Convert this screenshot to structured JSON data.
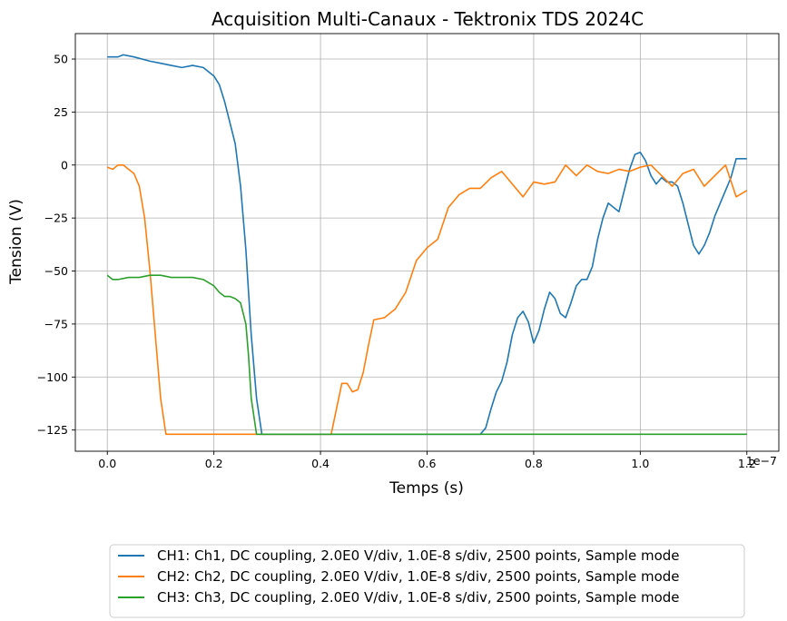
{
  "chart_data": {
    "type": "line",
    "title": "Acquisition Multi-Canaux - Tektronix TDS 2024C",
    "xlabel": "Temps (s)",
    "ylabel": "Tension (V)",
    "x_offset_label": "1e−7",
    "xlim": [
      -0.06,
      1.26
    ],
    "ylim": [
      -135,
      62
    ],
    "x_ticks": [
      0.0,
      0.2,
      0.4,
      0.6,
      0.8,
      1.0,
      1.2
    ],
    "x_tick_labels": [
      "0.0",
      "0.2",
      "0.4",
      "0.6",
      "0.8",
      "1.0",
      "1.2"
    ],
    "y_ticks": [
      50,
      25,
      0,
      -25,
      -50,
      -75,
      -100,
      -125
    ],
    "y_tick_labels": [
      "50",
      "25",
      "0",
      "−25",
      "−50",
      "−75",
      "−100",
      "−125"
    ],
    "grid": true,
    "legend_position": "bottom",
    "series": [
      {
        "name": "CH1: Ch1, DC coupling, 2.0E0 V/div, 1.0E-8 s/div, 2500 points, Sample mode",
        "color": "#1f77b4",
        "x": [
          0.0,
          0.02,
          0.03,
          0.05,
          0.08,
          0.1,
          0.12,
          0.14,
          0.16,
          0.18,
          0.2,
          0.21,
          0.22,
          0.23,
          0.24,
          0.25,
          0.26,
          0.27,
          0.28,
          0.29,
          0.3,
          0.35,
          0.4,
          0.5,
          0.6,
          0.7,
          0.71,
          0.72,
          0.73,
          0.74,
          0.75,
          0.76,
          0.77,
          0.78,
          0.79,
          0.8,
          0.81,
          0.82,
          0.83,
          0.84,
          0.85,
          0.86,
          0.87,
          0.88,
          0.89,
          0.9,
          0.91,
          0.92,
          0.93,
          0.94,
          0.95,
          0.96,
          0.97,
          0.98,
          0.99,
          1.0,
          1.01,
          1.02,
          1.03,
          1.04,
          1.05,
          1.06,
          1.07,
          1.08,
          1.09,
          1.1,
          1.11,
          1.12,
          1.13,
          1.14,
          1.15,
          1.16,
          1.17,
          1.18,
          1.19,
          1.2
        ],
        "y": [
          51,
          51,
          52,
          51,
          49,
          48,
          47,
          46,
          47,
          46,
          42,
          38,
          30,
          20,
          10,
          -10,
          -40,
          -80,
          -110,
          -127,
          -127,
          -127,
          -127,
          -127,
          -127,
          -127,
          -124,
          -115,
          -107,
          -102,
          -93,
          -80,
          -72,
          -69,
          -74,
          -84,
          -78,
          -68,
          -60,
          -63,
          -70,
          -72,
          -65,
          -57,
          -54,
          -54,
          -48,
          -35,
          -25,
          -18,
          -20,
          -22,
          -12,
          -2,
          5,
          6,
          2,
          -5,
          -9,
          -6,
          -8,
          -8,
          -10,
          -18,
          -28,
          -38,
          -42,
          -38,
          -32,
          -24,
          -18,
          -12,
          -6,
          3,
          3,
          3
        ],
        "y_note": "",
        "x_clean": [
          0.0,
          0.02,
          0.03,
          0.05,
          0.08,
          0.1,
          0.12,
          0.14,
          0.16,
          0.18,
          0.2,
          0.21,
          0.22,
          0.23,
          0.24,
          0.25,
          0.26,
          0.27,
          0.28,
          0.29,
          0.3,
          0.35,
          0.4,
          0.5,
          0.6,
          0.7,
          0.71,
          0.72,
          0.73,
          0.74,
          0.75,
          0.76,
          0.77,
          0.78,
          0.79,
          0.8,
          0.81,
          0.82,
          0.83,
          0.84,
          0.85,
          0.86,
          0.87,
          0.88,
          0.89,
          0.9,
          0.91,
          0.92,
          0.93,
          0.94,
          0.95,
          0.96,
          0.97,
          0.98,
          0.99,
          1.0,
          1.01,
          1.02,
          1.03,
          1.04,
          1.05,
          1.06,
          1.07,
          1.08,
          1.09,
          1.1,
          1.11,
          1.12,
          1.13,
          1.14,
          1.15,
          1.16,
          1.17,
          1.18,
          1.19,
          1.2
        ]
      },
      {
        "name": "CH2: Ch2, DC coupling, 2.0E0 V/div, 1.0E-8 s/div, 2500 points, Sample mode",
        "color": "#ff7f0e",
        "x": [
          0.0,
          0.01,
          0.02,
          0.03,
          0.04,
          0.05,
          0.06,
          0.07,
          0.08,
          0.09,
          0.1,
          0.11,
          0.12,
          0.13,
          0.2,
          0.3,
          0.4,
          0.42,
          0.43,
          0.44,
          0.45,
          0.46,
          0.47,
          0.48,
          0.49,
          0.5,
          0.52,
          0.54,
          0.56,
          0.58,
          0.6,
          0.62,
          0.64,
          0.66,
          0.68,
          0.7,
          0.72,
          0.74,
          0.76,
          0.78,
          0.8,
          0.82,
          0.84,
          0.86,
          0.88,
          0.9,
          0.92,
          0.94,
          0.96,
          0.98,
          1.0,
          1.02,
          1.04,
          1.06,
          1.08,
          1.1,
          1.12,
          1.14,
          1.16,
          1.18,
          1.2
        ],
        "y": [
          -1,
          -2,
          0,
          0,
          -2,
          -4,
          -10,
          -25,
          -50,
          -80,
          -110,
          -127,
          -127,
          -127,
          -127,
          -127,
          -127,
          -127,
          -115,
          -103,
          -103,
          -107,
          -106,
          -98,
          -85,
          -73,
          -72,
          -68,
          -60,
          -45,
          -39,
          -35,
          -20,
          -14,
          -11,
          -11,
          -6,
          -3,
          -9,
          -15,
          -8,
          -9,
          -8,
          0,
          -5,
          0,
          -3,
          -4,
          -2,
          -3,
          -1,
          0,
          -5,
          -10,
          -4,
          -2,
          -10,
          -5,
          0,
          -15,
          -12
        ],
        "x_clean": [
          0.0,
          0.01,
          0.02,
          0.03,
          0.04,
          0.05,
          0.06,
          0.07,
          0.08,
          0.09,
          0.1,
          0.11,
          0.12,
          0.13,
          0.2,
          0.3,
          0.4,
          0.42,
          0.43,
          0.44,
          0.45,
          0.46,
          0.47,
          0.48,
          0.49,
          0.5,
          0.52,
          0.54,
          0.56,
          0.58,
          0.6,
          0.62,
          0.64,
          0.66,
          0.68,
          0.7,
          0.72,
          0.74,
          0.76,
          0.78,
          0.8,
          0.82,
          0.84,
          0.86,
          0.88,
          0.9,
          0.92,
          0.94,
          0.96,
          0.98,
          1.0,
          1.02,
          1.04,
          1.06,
          1.08,
          1.1,
          1.12,
          1.14,
          1.16,
          1.18,
          1.2
        ]
      },
      {
        "name": "CH3: Ch3, DC coupling, 2.0E0 V/div, 1.0E-8 s/div, 2500 points, Sample mode",
        "color": "#2ca02c",
        "x": [
          0.0,
          0.01,
          0.02,
          0.04,
          0.06,
          0.08,
          0.1,
          0.12,
          0.14,
          0.16,
          0.18,
          0.2,
          0.21,
          0.22,
          0.23,
          0.24,
          0.25,
          0.26,
          0.265,
          0.27,
          0.28,
          0.3,
          0.4,
          0.6,
          0.8,
          1.0,
          1.2
        ],
        "y": [
          -52,
          -54,
          -54,
          -53,
          -53,
          -52,
          -52,
          -53,
          -53,
          -53,
          -54,
          -57,
          -60,
          -62,
          -62,
          -63,
          -65,
          -75,
          -90,
          -110,
          -127,
          -127,
          -127,
          -127,
          -127,
          -127,
          -127
        ],
        "x_clean": [
          0.0,
          0.01,
          0.02,
          0.04,
          0.06,
          0.08,
          0.1,
          0.12,
          0.14,
          0.16,
          0.18,
          0.2,
          0.21,
          0.22,
          0.23,
          0.24,
          0.25,
          0.26,
          0.265,
          0.27,
          0.28,
          0.3,
          0.4,
          0.6,
          0.8,
          1.0,
          1.2
        ]
      }
    ]
  }
}
